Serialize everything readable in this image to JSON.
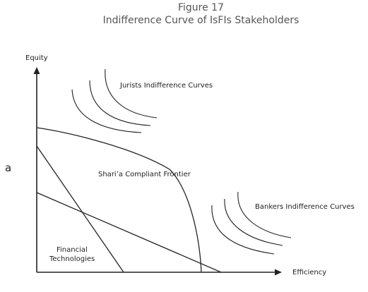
{
  "figure": {
    "number": "Figure 17",
    "caption": "Indifference Curve of IsFIs Stakeholders",
    "side_letter": "a"
  },
  "axes": {
    "y_label": "Equity",
    "x_label": "Efficiency"
  },
  "labels": {
    "jurists": "Jurists Indifference Curves",
    "frontier": "Shari’a Compliant Frontier",
    "bankers": "Bankers Indifference Curves",
    "fintech_line1": "Financial",
    "fintech_line2": "Technologies"
  },
  "colors": {
    "ink": "#222222",
    "title": "#555555"
  }
}
